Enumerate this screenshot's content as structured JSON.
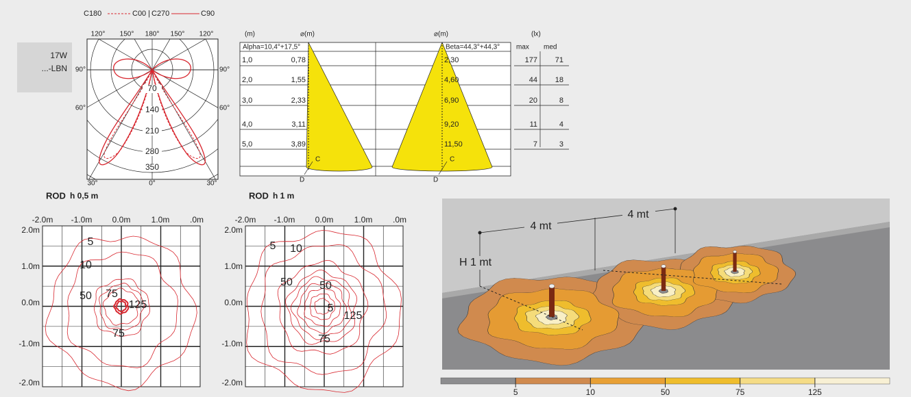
{
  "legend": {
    "c180": "C180",
    "c00": "C00",
    "separator": "|",
    "c270": "C270",
    "c90": "C90"
  },
  "lamp": {
    "power": "17W",
    "code": "...-LBN"
  },
  "polar": {
    "top_labels": [
      "120°",
      "150°",
      "180°",
      "150°",
      "120°"
    ],
    "left_labels": [
      "90°",
      "60°"
    ],
    "right_labels": [
      "90°",
      "60°"
    ],
    "bottom_labels": [
      "30°",
      "0°",
      "30°"
    ],
    "radial_labels": [
      "70",
      "140",
      "210",
      "280",
      "350"
    ]
  },
  "cone_table": {
    "height_header": "(m)",
    "alpha_diameter_header": "⌀(m)",
    "beta_diameter_header": "⌀(m)",
    "lux_header": "(lx)",
    "max_header": "max",
    "med_header": "med",
    "alpha": "Alpha=10,4°+17,5°",
    "beta": "Beta=44,3°+44,3°",
    "rows": [
      [
        "1,0",
        "0,78",
        "2,30",
        "177",
        "71"
      ],
      [
        "2,0",
        "1,55",
        "4,60",
        "44",
        "18"
      ],
      [
        "3,0",
        "2,33",
        "6,90",
        "20",
        "8"
      ],
      [
        "4,0",
        "3,11",
        "9,20",
        "11",
        "4"
      ],
      [
        "5,0",
        "3,89",
        "11,50",
        "7",
        "3"
      ]
    ],
    "c_label": "C",
    "d_label": "D"
  },
  "iso_plots": [
    {
      "title": "ROD",
      "height": "h 0,5 m",
      "x_labels": [
        "-2.0m",
        "-1.0m",
        "0.0m",
        "1.0m",
        ".0m"
      ],
      "y_labels": [
        "2.0m",
        "1.0m",
        "0.0m",
        "-1.0m",
        "-2.0m"
      ],
      "contour_labels": [
        "5",
        "10",
        "50",
        "75",
        "125",
        "75"
      ]
    },
    {
      "title": "ROD",
      "height": "h 1 m",
      "x_labels": [
        "-2.0m",
        "-1.0m",
        "0.0m",
        "1.0m",
        ".0m"
      ],
      "y_labels": [
        "2.0m",
        "1.0m",
        "0.0m",
        "-1.0m",
        "-2.0m"
      ],
      "contour_labels": [
        "5",
        "10",
        "50",
        "50",
        "5",
        "125",
        "75"
      ]
    }
  ],
  "render": {
    "spacing_labels": [
      "4 mt",
      "4 mt"
    ],
    "height_label": "H 1 mt",
    "scale_labels": [
      "5",
      "10",
      "50",
      "75",
      "125"
    ]
  }
}
